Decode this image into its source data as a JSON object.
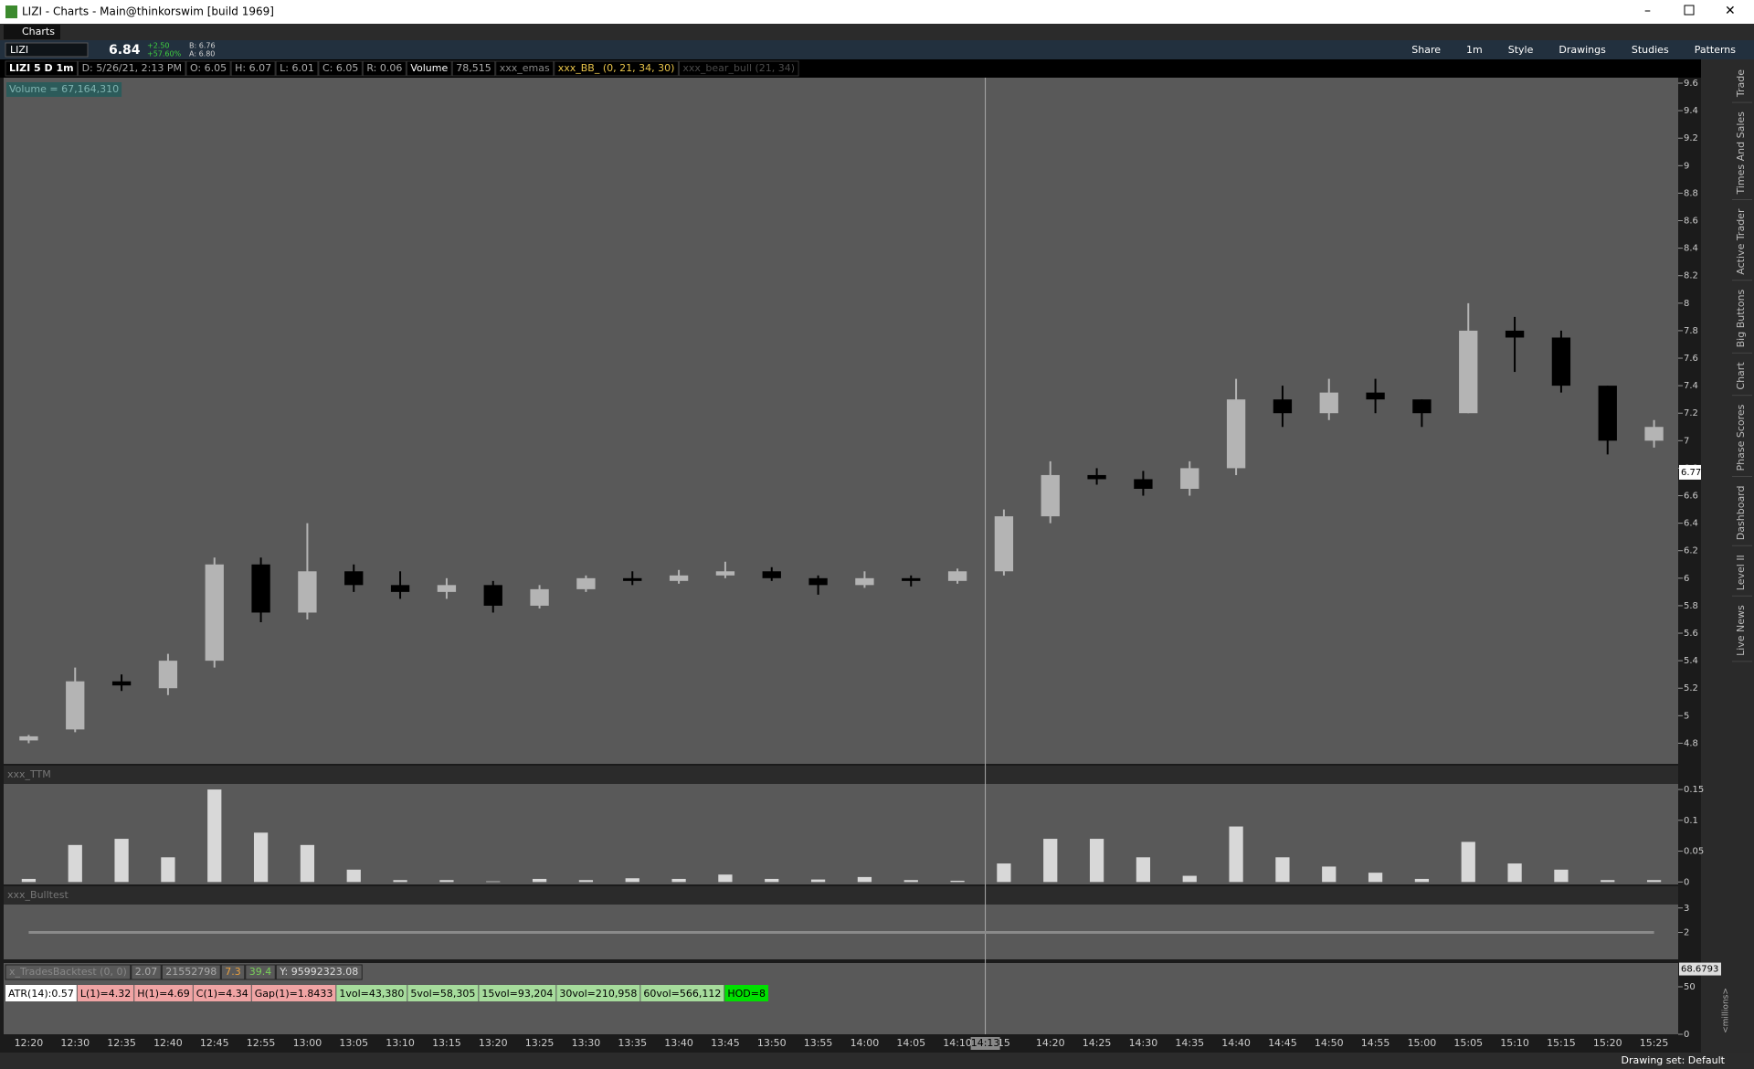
{
  "window": {
    "title": "LIZI - Charts -  Main@thinkorswim [build 1969]",
    "tab": "Charts"
  },
  "toolbar": {
    "symbol": "LIZI",
    "last": "6.84",
    "change": "+2.50",
    "change_pct": "+57.60%",
    "bid": "B: 6.76",
    "ask": "A: 6.80",
    "buttons": [
      "Patterns",
      "Studies",
      "Drawings",
      "Style",
      "1m",
      "Share"
    ]
  },
  "info": [
    "LIZI 5 D 1m",
    "D: 5/26/21, 2:13 PM",
    "O: 6.05",
    "H: 6.07",
    "L: 6.01",
    "C: 6.05",
    "R: 0.06",
    "Volume",
    "78,515",
    "xxx_emas",
    "xxx_BB_ (0, 21, 34, 30)",
    "xxx_bear_bull (21, 34)"
  ],
  "side_tabs": [
    "Trade",
    "Times And Sales",
    "Active Trader",
    "Big Buttons",
    "Chart",
    "Phase Scores",
    "Dashboard",
    "Level II",
    "Live News"
  ],
  "backtest": [
    "x_TradesBacktest (0, 0)",
    "2.07",
    "21552798",
    "7.3",
    "39.4",
    "Y: 95992323.08"
  ],
  "stats": [
    "ATR(14):0.57",
    "L(1)=4.32",
    "H(1)=4.69",
    "C(1)=4.34",
    "Gap(1)=1.8433",
    "1vol=43,380",
    "5vol=58,305",
    "15vol=93,204",
    "30vol=210,958",
    "60vol=566,112",
    "HOD=8"
  ],
  "status": "Drawing set: Default",
  "chart_data": [
    {
      "type": "candlestick",
      "annotation": "Volume = 67,164,310",
      "cursor_label": "14:13",
      "last_price": 6.77,
      "up_color": "#b4b4b4",
      "down_color": "#000000",
      "categories": [
        "12:20",
        "12:30",
        "12:35",
        "12:40",
        "12:45",
        "12:55",
        "13:00",
        "13:05",
        "13:10",
        "13:15",
        "13:20",
        "13:25",
        "13:30",
        "13:35",
        "13:40",
        "13:45",
        "13:50",
        "13:55",
        "14:00",
        "14:05",
        "14:10",
        "15",
        "14:20",
        "14:25",
        "14:30",
        "14:35",
        "14:40",
        "14:45",
        "14:50",
        "14:55",
        "15:00",
        "15:05",
        "15:10",
        "15:15",
        "15:20",
        "15:25"
      ],
      "open": [
        4.82,
        4.9,
        5.25,
        5.2,
        5.4,
        6.1,
        5.75,
        6.05,
        5.95,
        5.9,
        5.95,
        5.8,
        5.92,
        6.0,
        5.98,
        6.02,
        6.05,
        6.0,
        5.95,
        6.0,
        5.98,
        6.05,
        6.45,
        6.75,
        6.72,
        6.65,
        6.8,
        7.3,
        7.2,
        7.35,
        7.3,
        7.2,
        7.8,
        7.75,
        7.4,
        7.0
      ],
      "high": [
        4.86,
        5.35,
        5.3,
        5.45,
        6.15,
        6.15,
        6.4,
        6.1,
        6.05,
        6.0,
        5.98,
        5.95,
        6.02,
        6.05,
        6.06,
        6.12,
        6.08,
        6.02,
        6.05,
        6.02,
        6.07,
        6.5,
        6.85,
        6.8,
        6.78,
        6.85,
        7.45,
        7.4,
        7.45,
        7.45,
        7.3,
        8.0,
        7.9,
        7.8,
        7.4,
        7.15
      ],
      "low": [
        4.8,
        4.88,
        5.18,
        5.15,
        5.35,
        5.68,
        5.7,
        5.9,
        5.85,
        5.85,
        5.75,
        5.78,
        5.9,
        5.95,
        5.96,
        6.0,
        5.98,
        5.88,
        5.93,
        5.94,
        5.96,
        6.02,
        6.4,
        6.68,
        6.6,
        6.6,
        6.75,
        7.1,
        7.15,
        7.2,
        7.1,
        7.2,
        7.5,
        7.35,
        6.9,
        6.95
      ],
      "close": [
        4.85,
        5.25,
        5.22,
        5.4,
        6.1,
        5.75,
        6.05,
        5.95,
        5.9,
        5.95,
        5.8,
        5.92,
        6.0,
        5.98,
        6.02,
        6.05,
        6.0,
        5.95,
        6.0,
        5.98,
        6.05,
        6.45,
        6.75,
        6.72,
        6.65,
        6.8,
        7.3,
        7.2,
        7.35,
        7.3,
        7.2,
        7.8,
        7.75,
        7.4,
        7.0,
        7.1
      ],
      "ylim": [
        4.65,
        9.64
      ],
      "yticks": [
        4.8,
        5,
        5.2,
        5.4,
        5.6,
        5.8,
        6,
        6.2,
        6.4,
        6.6,
        6.8,
        7,
        7.2,
        7.4,
        7.6,
        7.8,
        8,
        8.2,
        8.4,
        8.6,
        8.8,
        9,
        9.2,
        9.4,
        9.6
      ]
    },
    {
      "type": "bar",
      "title": "xxx_TTM",
      "color": "#d8d8d8",
      "values": [
        0.005,
        0.06,
        0.07,
        0.04,
        0.15,
        0.08,
        0.06,
        0.02,
        0.003,
        0.003,
        0.001,
        0.005,
        0.003,
        0.006,
        0.005,
        0.012,
        0.005,
        0.004,
        0.008,
        0.003,
        0.002,
        0.03,
        0.07,
        0.07,
        0.04,
        0.01,
        0.09,
        0.04,
        0.025,
        0.015,
        0.005,
        0.065,
        0.03,
        0.02,
        0.003,
        0.003
      ],
      "ylim": [
        -0.004,
        0.159
      ],
      "yticks": [
        0,
        0.05,
        0.1,
        0.15
      ]
    },
    {
      "type": "line",
      "title": "xxx_Bulltest",
      "color": "#8a8a8a",
      "values": [
        2,
        2,
        2,
        2,
        2,
        2,
        2,
        2,
        2,
        2,
        2,
        2,
        2,
        2,
        2,
        2,
        2,
        2,
        2,
        2,
        2,
        2,
        2,
        2,
        2,
        2,
        2,
        2,
        2,
        2,
        2,
        2,
        2,
        2,
        2,
        2
      ],
      "ylim": [
        0.9,
        3.14
      ],
      "yticks": [
        2,
        3
      ]
    },
    {
      "type": "volume",
      "unit_label": "<millions>",
      "last_value": 68.6793,
      "ylim": [
        0,
        75
      ],
      "yticks": [
        0,
        50
      ]
    }
  ]
}
